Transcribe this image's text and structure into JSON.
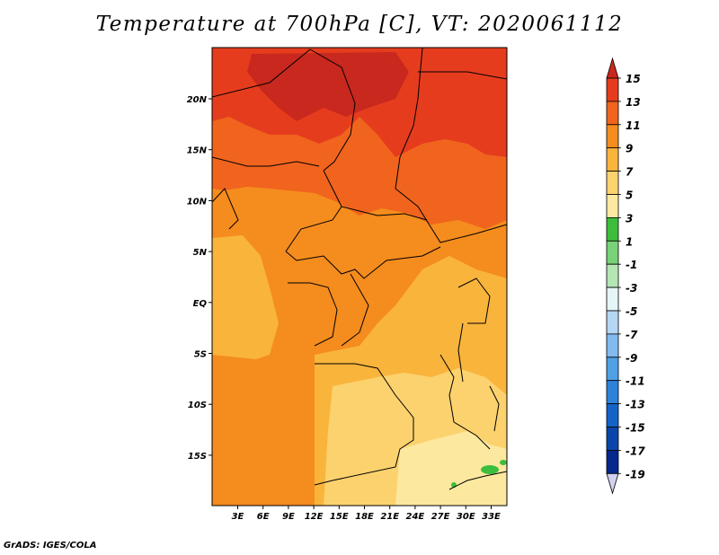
{
  "title": "Temperature at 700hPa [C], VT: 2020061112",
  "credit": "GrADS: IGES/COLA",
  "map": {
    "lon_labels": [
      "3E",
      "6E",
      "9E",
      "12E",
      "15E",
      "18E",
      "21E",
      "24E",
      "27E",
      "30E",
      "33E"
    ],
    "lat_labels": [
      "20N",
      "15N",
      "10N",
      "5N",
      "EQ",
      "5S",
      "10S",
      "15S"
    ],
    "lon_range": [
      0,
      35
    ],
    "lat_range": [
      -20,
      25
    ]
  },
  "colorbar": {
    "labels": [
      "15",
      "13",
      "11",
      "9",
      "7",
      "5",
      "3",
      "1",
      "-1",
      "-3",
      "-5",
      "-7",
      "-9",
      "-11",
      "-13",
      "-15",
      "-17",
      "-19"
    ],
    "colors": {
      "above_15": "#c8281e",
      "13_15": "#e63c1e",
      "11_13": "#f0641e",
      "9_11": "#f58c1e",
      "7_9": "#f9b43c",
      "5_7": "#fcd26e",
      "3_5": "#fde8a0",
      "1_3": "#3cbe3c",
      "-1_1": "#78d278",
      "-3_-1": "#b4e6b4",
      "-5_-3": "#e6f5f5",
      "-7_-5": "#b4d7f5",
      "-9_-7": "#82b9f0",
      "-11_-9": "#50a0e6",
      "-13_-11": "#2d82dc",
      "-15_-13": "#1464c8",
      "-17_-15": "#0a46aa",
      "-19_-17": "#05288c",
      "below_-19": "#d2d2f0"
    }
  }
}
